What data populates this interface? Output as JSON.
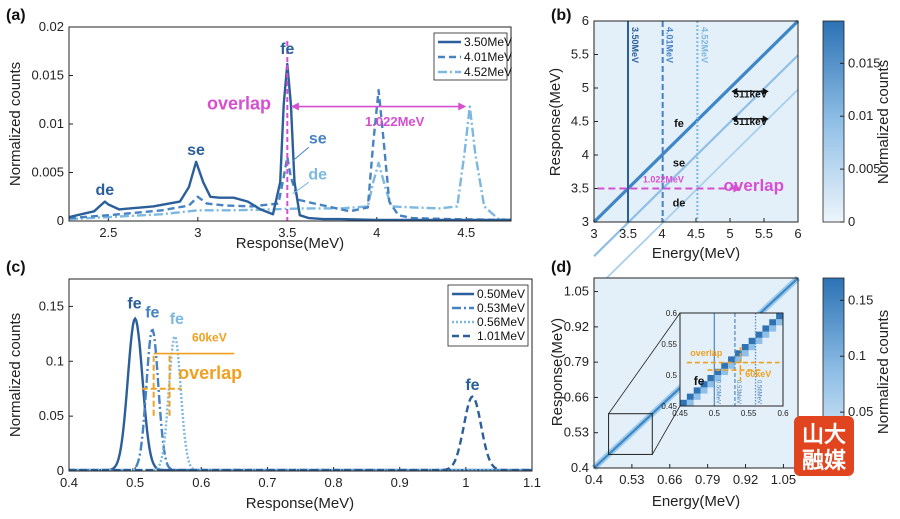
{
  "colors": {
    "dark": "#2b5f9a",
    "mid": "#4682c4",
    "light": "#7cb8e0",
    "pale": "#a5d2ee",
    "magenta": "#d64fd0",
    "orange": "#f0a021",
    "text": "#2b5f9a"
  },
  "chart_data": [
    {
      "type": "line",
      "panel": "(a)",
      "xlabel": "Response(MeV)",
      "ylabel": "Normalized counts",
      "xlim": [
        2.28,
        4.75
      ],
      "ylim": [
        0,
        0.02
      ],
      "xticks": [
        2.5,
        3,
        3.5,
        4,
        4.5
      ],
      "xticklabels": [
        "2.5",
        "3",
        "3.5",
        "4",
        "4.5"
      ],
      "yticks": [
        0,
        0.005,
        0.01,
        0.015,
        0.02
      ],
      "yticklabels": [
        "0",
        "0.005",
        "0.01",
        "0.015",
        "0.02"
      ],
      "legend": {
        "location": "top-right"
      },
      "series": [
        {
          "name": "3.50MeV",
          "style": "solid",
          "color_key": "dark",
          "x": [
            2.28,
            2.35,
            2.42,
            2.48,
            2.5,
            2.56,
            2.62,
            2.75,
            2.9,
            2.95,
            2.99,
            3.03,
            3.07,
            3.12,
            3.2,
            3.28,
            3.35,
            3.42,
            3.46,
            3.48,
            3.5,
            3.52,
            3.54,
            3.57,
            3.62,
            3.7,
            3.8,
            4.0,
            4.3,
            4.75
          ],
          "y": [
            0.0004,
            0.0007,
            0.001,
            0.002,
            0.0017,
            0.0012,
            0.0013,
            0.0015,
            0.002,
            0.0035,
            0.0061,
            0.004,
            0.0025,
            0.0024,
            0.0024,
            0.002,
            0.0012,
            0.0007,
            0.004,
            0.012,
            0.0162,
            0.012,
            0.004,
            0.0006,
            0.0003,
            0.0002,
            0.0002,
            0.0001,
            0.0001,
            0.0001
          ]
        },
        {
          "name": "4.01MeV",
          "style": "dashed",
          "color_key": "mid",
          "x": [
            2.28,
            2.5,
            2.8,
            2.95,
            3.0,
            3.05,
            3.15,
            3.3,
            3.45,
            3.48,
            3.5,
            3.52,
            3.56,
            3.65,
            3.75,
            3.85,
            3.95,
            3.98,
            4.01,
            4.04,
            4.07,
            4.12,
            4.2,
            4.4,
            4.75
          ],
          "y": [
            0.0003,
            0.0006,
            0.0011,
            0.0016,
            0.0025,
            0.0018,
            0.0016,
            0.0015,
            0.0018,
            0.0045,
            0.0066,
            0.0045,
            0.0022,
            0.0018,
            0.0014,
            0.001,
            0.0014,
            0.008,
            0.0135,
            0.008,
            0.002,
            0.0006,
            0.0003,
            0.0002,
            0.0001
          ]
        },
        {
          "name": "4.52MeV",
          "style": "dashdot",
          "color_key": "light",
          "x": [
            2.28,
            2.5,
            2.8,
            3.0,
            3.2,
            3.4,
            3.6,
            3.8,
            3.95,
            3.98,
            4.01,
            4.04,
            4.08,
            4.2,
            4.35,
            4.45,
            4.49,
            4.52,
            4.55,
            4.6,
            4.68,
            4.75
          ],
          "y": [
            0.0002,
            0.0004,
            0.0007,
            0.0011,
            0.0011,
            0.0012,
            0.0013,
            0.0013,
            0.0015,
            0.004,
            0.006,
            0.004,
            0.0015,
            0.0014,
            0.0013,
            0.0015,
            0.007,
            0.0118,
            0.007,
            0.0015,
            0.0002,
            0.0001
          ]
        }
      ],
      "annotations": [
        {
          "text": "fe",
          "x": 3.5,
          "y": 0.0172,
          "color_key": "text"
        },
        {
          "text": "se",
          "x": 2.99,
          "y": 0.0068,
          "color_key": "text"
        },
        {
          "text": "de",
          "x": 2.48,
          "y": 0.0027,
          "color_key": "text"
        },
        {
          "text": "se",
          "x": 3.67,
          "y": 0.008,
          "color_key": "mid"
        },
        {
          "text": "de",
          "x": 3.67,
          "y": 0.0043,
          "color_key": "light"
        },
        {
          "text": "overlap",
          "x": 3.23,
          "y": 0.0115,
          "color_key": "magenta"
        },
        {
          "text": "1.022MeV",
          "x": 4.1,
          "y": 0.0098,
          "color_key": "magenta"
        }
      ],
      "overlap_line_x": 3.5,
      "span_arrow": {
        "x1": 3.52,
        "x2": 4.5,
        "y": 0.0118
      }
    },
    {
      "type": "heatmap",
      "panel": "(b)",
      "xlabel": "Energy(MeV)",
      "ylabel": "Response(MeV)",
      "xlim": [
        3,
        6
      ],
      "ylim": [
        3,
        6
      ],
      "xticks": [
        3,
        3.5,
        4,
        4.5,
        5,
        5.5,
        6
      ],
      "xticklabels": [
        "3",
        "3.5",
        "4",
        "4.5",
        "5",
        "5.5",
        "6"
      ],
      "yticks": [
        3,
        3.5,
        4,
        4.5,
        5,
        5.5,
        6
      ],
      "yticklabels": [
        "3",
        "3.5",
        "4",
        "4.5",
        "5",
        "5.5",
        "6"
      ],
      "vlines": [
        {
          "x": 3.5,
          "label": "3.50MeV",
          "style": "solid",
          "color_key": "dark"
        },
        {
          "x": 4.01,
          "label": "4.01MeV",
          "style": "dashed",
          "color_key": "mid"
        },
        {
          "x": 4.52,
          "label": "4.52MeV",
          "style": "dotted",
          "color_key": "light"
        }
      ],
      "colorbar": {
        "title": "Normalized counts",
        "range": [
          0,
          0.019
        ],
        "ticks": [
          0,
          0.005,
          0.01,
          0.015
        ],
        "ticklabels": [
          "0",
          "0.005",
          "0.01",
          "0.015"
        ]
      },
      "annotations": [
        {
          "text": "fe",
          "x": 4.25,
          "y": 4.42
        },
        {
          "text": "se",
          "x": 4.25,
          "y": 3.83
        },
        {
          "text": "de",
          "x": 4.25,
          "y": 3.23
        },
        {
          "text": "511keV",
          "x": 5.3,
          "y": 4.86
        },
        {
          "text": "511keV",
          "x": 5.3,
          "y": 4.45
        },
        {
          "text": "1.022MeV",
          "x": 4.02,
          "y": 3.59
        },
        {
          "text": "overlap",
          "x": 5.35,
          "y": 3.46
        }
      ]
    },
    {
      "type": "line",
      "panel": "(c)",
      "xlabel": "Response(MeV)",
      "ylabel": "Normalized counts",
      "xlim": [
        0.4,
        1.1
      ],
      "ylim": [
        0,
        0.175
      ],
      "xticks": [
        0.4,
        0.5,
        0.6,
        0.7,
        0.8,
        0.9,
        1,
        1.1
      ],
      "xticklabels": [
        "0.4",
        "0.5",
        "0.6",
        "0.7",
        "0.8",
        "0.9",
        "1",
        "1.1"
      ],
      "yticks": [
        0,
        0.05,
        0.1,
        0.15
      ],
      "yticklabels": [
        "0",
        "0.05",
        "0.1",
        "0.15"
      ],
      "legend": {
        "location": "top-right"
      },
      "series": [
        {
          "name": "0.50MeV",
          "style": "solid",
          "color_key": "dark",
          "gauss": {
            "mu": 0.5,
            "sigma": 0.011,
            "amp": 0.138
          }
        },
        {
          "name": "0.53MeV",
          "style": "dashdot",
          "color_key": "mid",
          "gauss": {
            "mu": 0.526,
            "sigma": 0.009,
            "amp": 0.128
          }
        },
        {
          "name": "0.56MeV",
          "style": "dotted",
          "color_key": "light",
          "gauss": {
            "mu": 0.56,
            "sigma": 0.009,
            "amp": 0.122
          }
        },
        {
          "name": "1.01MeV",
          "style": "dashed",
          "color_key": "dark",
          "gauss": {
            "mu": 1.01,
            "sigma": 0.013,
            "amp": 0.067
          }
        }
      ],
      "annotations": [
        {
          "text": "fe",
          "x": 0.499,
          "y": 0.148
        },
        {
          "text": "fe",
          "x": 0.526,
          "y": 0.14
        },
        {
          "text": "fe",
          "x": 0.563,
          "y": 0.134
        },
        {
          "text": "fe",
          "x": 1.01,
          "y": 0.074
        },
        {
          "text": "60keV",
          "x": 0.586,
          "y": 0.118,
          "color_key": "orange"
        },
        {
          "text": "overlap",
          "x": 0.565,
          "y": 0.084,
          "color_key": "orange"
        }
      ]
    },
    {
      "type": "heatmap",
      "panel": "(d)",
      "xlabel": "Energy(MeV)",
      "ylabel": "Response(MeV)",
      "xlim": [
        0.4,
        1.1
      ],
      "ylim": [
        0.4,
        1.1
      ],
      "xticks": [
        0.4,
        0.53,
        0.66,
        0.79,
        0.92,
        1.05
      ],
      "xticklabels": [
        "0.4",
        "0.53",
        "0.66",
        "0.79",
        "0.92",
        "1.05"
      ],
      "yticks": [
        0.4,
        0.53,
        0.66,
        0.79,
        0.92,
        1.05
      ],
      "yticklabels": [
        "0.4",
        "0.53",
        "0.66",
        "0.79",
        "0.92",
        "1.05"
      ],
      "colorbar": {
        "title": "Normalized counts",
        "range": [
          0,
          0.17
        ],
        "ticks": [
          0.05,
          0.1,
          0.15
        ],
        "ticklabels": [
          "0.05",
          "0.1",
          "0.15"
        ]
      },
      "inset": {
        "xlim": [
          0.45,
          0.6
        ],
        "ylim": [
          0.45,
          0.6
        ],
        "xticks": [
          0.45,
          0.5,
          0.55,
          0.6
        ],
        "xticklabels": [
          "0.45",
          "0.5",
          "0.55",
          "0.6"
        ],
        "yticks": [
          0.45,
          0.5,
          0.55,
          0.6
        ],
        "yticklabels": [
          "0.45",
          "0.5",
          "0.55",
          "0.6"
        ],
        "vlines": [
          {
            "x": 0.5,
            "label": "0.50MeV",
            "style": "solid"
          },
          {
            "x": 0.53,
            "label": "0.53MeV",
            "style": "dashed"
          },
          {
            "x": 0.56,
            "label": "0.56MeV",
            "style": "dotted"
          }
        ],
        "annotations": [
          {
            "text": "overlap",
            "x": 0.465,
            "y": 0.531,
            "color_key": "orange"
          },
          {
            "text": "60keV",
            "x": 0.545,
            "y": 0.497,
            "color_key": "orange"
          },
          {
            "text": "fe",
            "x": 0.47,
            "y": 0.484
          }
        ]
      }
    }
  ],
  "watermark": {
    "lines": [
      "山大",
      "融媒"
    ]
  }
}
